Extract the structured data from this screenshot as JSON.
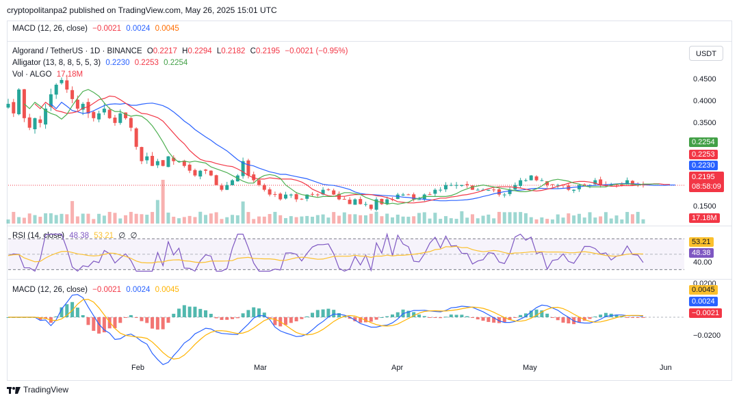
{
  "header": {
    "publisher": "cryptopolitanpa2 published on TradingView.com, May 26, 2025 15:01 UTC"
  },
  "top_macd": {
    "label": "MACD (12, 26, close)",
    "v1": "−0.0021",
    "v2": "0.0024",
    "v3": "0.0045"
  },
  "symbol": {
    "name": "Algorand / TetherUS · 1D · BINANCE",
    "o_label": "O",
    "o": "0.2217",
    "h_label": "H",
    "h": "0.2294",
    "l_label": "L",
    "l": "0.2182",
    "c_label": "C",
    "c": "0.2195",
    "change": "−0.0021 (−0.95%)"
  },
  "alligator": {
    "label": "Alligator (13, 8, 8, 5, 5, 3)",
    "jaw": "0.2230",
    "teeth": "0.2253",
    "lips": "0.2254"
  },
  "volume": {
    "label": "Vol · ALGO",
    "value": "17.18M"
  },
  "currency_button": "USDT",
  "price_axis": [
    "0.4500",
    "0.4000",
    "0.3500",
    "0.1500"
  ],
  "price_tags": {
    "lips": "0.2254",
    "teeth": "0.2253",
    "jaw": "0.2230",
    "close": "0.2195",
    "countdown": "08:58:09",
    "volume": "17.18M"
  },
  "rsi": {
    "label": "RSI (14, close)",
    "value": "48.38",
    "ma": "53.21",
    "axis": "40.00",
    "extra1": "∅",
    "extra2": "∅"
  },
  "macd": {
    "label": "MACD (12, 26, close)",
    "hist": "−0.0021",
    "macd": "0.0024",
    "signal": "0.0045",
    "axis_top": "0.0200",
    "axis_bottom": "−0.0200"
  },
  "dates": [
    "Feb",
    "Mar",
    "Apr",
    "May",
    "Jun"
  ],
  "footer": {
    "brand": "TradingView"
  },
  "colors": {
    "up": "#26a69a",
    "down": "#ef5350",
    "jaw": "#2962ff",
    "teeth": "#f23645",
    "lips": "#4caf50",
    "rsi": "#7e57c2",
    "rsi_ma": "#fbc02d",
    "macd": "#2962ff",
    "signal": "#ffb300"
  },
  "chart_data": {
    "type": "candlestick",
    "x_start": "2025-01-01",
    "x_end": "2025-05-26",
    "ylim": [
      0.135,
      0.47
    ],
    "close_path": [
      0.39,
      0.37,
      0.42,
      0.36,
      0.34,
      0.36,
      0.35,
      0.38,
      0.41,
      0.43,
      0.44,
      0.42,
      0.4,
      0.38,
      0.39,
      0.37,
      0.36,
      0.37,
      0.38,
      0.36,
      0.35,
      0.37,
      0.36,
      0.34,
      0.3,
      0.27,
      0.28,
      0.26,
      0.27,
      0.26,
      0.28,
      0.27,
      0.27,
      0.26,
      0.25,
      0.24,
      0.25,
      0.25,
      0.24,
      0.22,
      0.21,
      0.22,
      0.23,
      0.24,
      0.27,
      0.24,
      0.23,
      0.22,
      0.21,
      0.2,
      0.2,
      0.19,
      0.2,
      0.2,
      0.19,
      0.19,
      0.2,
      0.2,
      0.2,
      0.21,
      0.21,
      0.2,
      0.19,
      0.19,
      0.18,
      0.19,
      0.18,
      0.18,
      0.17,
      0.19,
      0.18,
      0.19,
      0.19,
      0.2,
      0.2,
      0.2,
      0.19,
      0.19,
      0.2,
      0.2,
      0.21,
      0.21,
      0.22,
      0.22,
      0.22,
      0.22,
      0.22,
      0.21,
      0.21,
      0.21,
      0.21,
      0.21,
      0.2,
      0.2,
      0.21,
      0.22,
      0.23,
      0.23,
      0.24,
      0.23,
      0.23,
      0.22,
      0.22,
      0.22,
      0.22,
      0.21,
      0.21,
      0.22,
      0.22,
      0.22,
      0.23,
      0.22,
      0.22,
      0.22,
      0.22,
      0.22,
      0.23,
      0.22,
      0.22,
      0.22
    ],
    "rsi_ylim": [
      25,
      80
    ],
    "macd_ylim": [
      -0.03,
      0.03
    ]
  }
}
